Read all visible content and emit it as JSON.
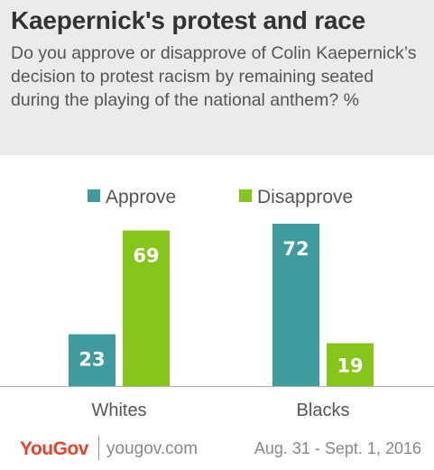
{
  "header": {
    "title": "Kaepernick's protest and race",
    "subtitle": "Do you approve or disapprove of Colin Kaepernick’s decision to protest racism by remaining seated during the playing of the national anthem? %"
  },
  "chart_data": {
    "type": "bar",
    "title": "Kaepernick's protest and race",
    "categories": [
      "Whites",
      "Blacks"
    ],
    "series": [
      {
        "name": "Approve",
        "values": [
          23,
          72
        ],
        "color": "#3f9b9d"
      },
      {
        "name": "Disapprove",
        "values": [
          69,
          19
        ],
        "color": "#86c51a"
      }
    ],
    "ylim": [
      0,
      80
    ],
    "grid": false,
    "legend": "top"
  },
  "footer": {
    "logo": "YouGov",
    "site": "yougov.com",
    "date": "Aug. 31 - Sept. 1, 2016"
  }
}
